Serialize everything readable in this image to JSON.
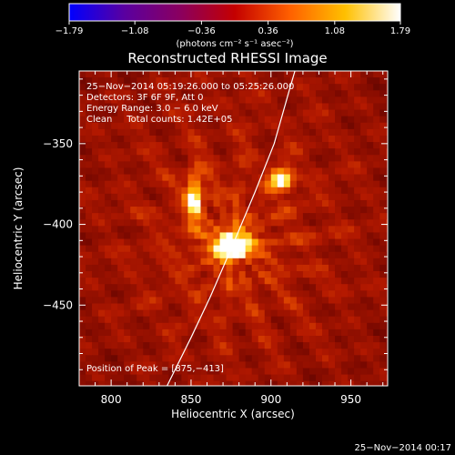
{
  "chart_data": {
    "type": "heatmap",
    "title": "Reconstructed RHESSI Image",
    "xlabel": "Heliocentric X (arcsec)",
    "ylabel": "Heliocentric Y (arcsec)",
    "xlim": [
      780,
      973
    ],
    "ylim": [
      -500,
      -305
    ],
    "x_ticks": [
      800,
      850,
      900,
      950
    ],
    "y_ticks": [
      -450,
      -400,
      -350
    ],
    "x_tick_labels": [
      "800",
      "850",
      "900",
      "950"
    ],
    "y_tick_labels": [
      "−450",
      "−400",
      "−350"
    ],
    "colorbar": {
      "min": -1.79,
      "max": 1.79,
      "tick_values": [
        -1.79,
        -1.08,
        -0.36,
        0.36,
        1.08,
        1.79
      ],
      "tick_labels": [
        "−1.79",
        "−1.08",
        "−0.36",
        "0.36",
        "1.08",
        "1.79"
      ],
      "units_label": "(photons cm⁻² s⁻¹ asec⁻²)",
      "colors": [
        "#0000ff",
        "#5a00a0",
        "#8a0060",
        "#c40000",
        "#ff6000",
        "#ffc000",
        "#ffffff"
      ]
    },
    "info_lines": [
      "25−Nov−2014 05:19:26.000 to 05:25:26.000",
      "Detectors: 3F 6F 9F, Att 0",
      "Energy Range: 3.0 − 6.0 keV",
      "Clean     Total counts: 1.42E+05"
    ],
    "peak_label": "Position of Peak = [875,−413]",
    "sources": [
      {
        "x": 876,
        "y": -413,
        "sx": 7,
        "sy": 5,
        "amp": 1.0
      },
      {
        "x": 852,
        "y": -383,
        "sx": 3.5,
        "sy": 11,
        "amp": 0.55
      },
      {
        "x": 907,
        "y": -372,
        "sx": 5,
        "sy": 5,
        "amp": 0.6
      }
    ],
    "limb_curve": [
      [
        835,
        -500
      ],
      [
        850,
        -470
      ],
      [
        862,
        -445
      ],
      [
        876,
        -413
      ],
      [
        890,
        -380
      ],
      [
        902,
        -350
      ],
      [
        912,
        -315
      ],
      [
        915,
        -305
      ]
    ],
    "colors": {
      "limb": "#ffffff",
      "background_field": "#a01000"
    }
  },
  "footer": {
    "timestamp": "25−Nov−2014 00:17"
  }
}
